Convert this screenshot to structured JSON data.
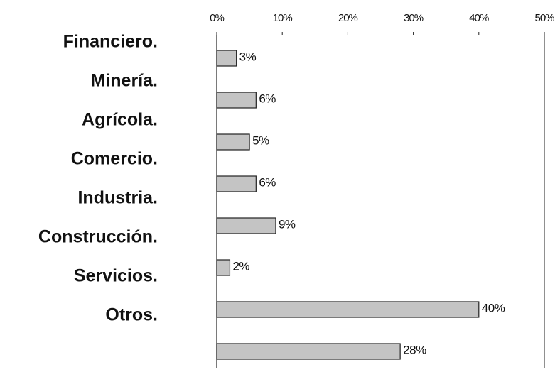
{
  "chart_data": {
    "type": "bar",
    "orientation": "horizontal",
    "categories": [
      "Financiero.",
      "Minería.",
      "Agrícola.",
      "Comercio.",
      "Industria.",
      "Construcción.",
      "Servicios.",
      "Otros."
    ],
    "values": [
      3,
      6,
      5,
      6,
      9,
      2,
      40,
      28
    ],
    "value_labels": [
      "3%",
      "6%",
      "5%",
      "6%",
      "9%",
      "2%",
      "40%",
      "28%"
    ],
    "color": "#c4c4c4",
    "xlim": [
      0,
      50
    ],
    "xticks": [
      {
        "value": 0,
        "label": "0%"
      },
      {
        "value": 10,
        "label": "10%"
      },
      {
        "value": 20,
        "label": "20%"
      },
      {
        "value": 30,
        "label": "30%"
      },
      {
        "value": 40,
        "label": "40%"
      },
      {
        "value": 50,
        "label": "50%"
      }
    ]
  }
}
